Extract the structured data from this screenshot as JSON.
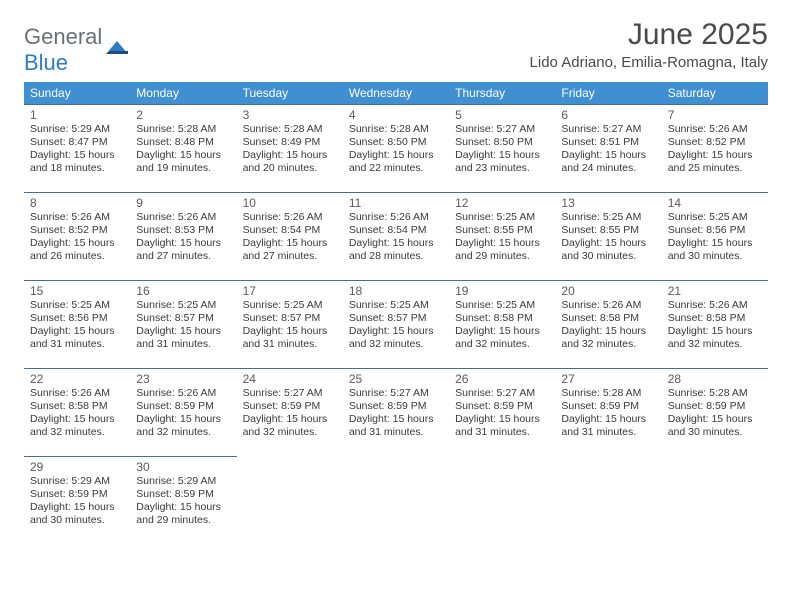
{
  "logo": {
    "part1": "General",
    "part2": "Blue"
  },
  "title": "June 2025",
  "location": "Lido Adriano, Emilia-Romagna, Italy",
  "colors": {
    "header_bg": "#3f8fd1",
    "header_text": "#ffffff",
    "cell_border": "#3f6f9c",
    "body_text": "#3a3a3a",
    "logo_gray": "#6b7076",
    "logo_blue": "#2e7cc2",
    "background": "#ffffff"
  },
  "weekdays": [
    "Sunday",
    "Monday",
    "Tuesday",
    "Wednesday",
    "Thursday",
    "Friday",
    "Saturday"
  ],
  "weeks": [
    [
      {
        "n": "1",
        "sr": "5:29 AM",
        "ss": "8:47 PM",
        "dl": "15 hours and 18 minutes."
      },
      {
        "n": "2",
        "sr": "5:28 AM",
        "ss": "8:48 PM",
        "dl": "15 hours and 19 minutes."
      },
      {
        "n": "3",
        "sr": "5:28 AM",
        "ss": "8:49 PM",
        "dl": "15 hours and 20 minutes."
      },
      {
        "n": "4",
        "sr": "5:28 AM",
        "ss": "8:50 PM",
        "dl": "15 hours and 22 minutes."
      },
      {
        "n": "5",
        "sr": "5:27 AM",
        "ss": "8:50 PM",
        "dl": "15 hours and 23 minutes."
      },
      {
        "n": "6",
        "sr": "5:27 AM",
        "ss": "8:51 PM",
        "dl": "15 hours and 24 minutes."
      },
      {
        "n": "7",
        "sr": "5:26 AM",
        "ss": "8:52 PM",
        "dl": "15 hours and 25 minutes."
      }
    ],
    [
      {
        "n": "8",
        "sr": "5:26 AM",
        "ss": "8:52 PM",
        "dl": "15 hours and 26 minutes."
      },
      {
        "n": "9",
        "sr": "5:26 AM",
        "ss": "8:53 PM",
        "dl": "15 hours and 27 minutes."
      },
      {
        "n": "10",
        "sr": "5:26 AM",
        "ss": "8:54 PM",
        "dl": "15 hours and 27 minutes."
      },
      {
        "n": "11",
        "sr": "5:26 AM",
        "ss": "8:54 PM",
        "dl": "15 hours and 28 minutes."
      },
      {
        "n": "12",
        "sr": "5:25 AM",
        "ss": "8:55 PM",
        "dl": "15 hours and 29 minutes."
      },
      {
        "n": "13",
        "sr": "5:25 AM",
        "ss": "8:55 PM",
        "dl": "15 hours and 30 minutes."
      },
      {
        "n": "14",
        "sr": "5:25 AM",
        "ss": "8:56 PM",
        "dl": "15 hours and 30 minutes."
      }
    ],
    [
      {
        "n": "15",
        "sr": "5:25 AM",
        "ss": "8:56 PM",
        "dl": "15 hours and 31 minutes."
      },
      {
        "n": "16",
        "sr": "5:25 AM",
        "ss": "8:57 PM",
        "dl": "15 hours and 31 minutes."
      },
      {
        "n": "17",
        "sr": "5:25 AM",
        "ss": "8:57 PM",
        "dl": "15 hours and 31 minutes."
      },
      {
        "n": "18",
        "sr": "5:25 AM",
        "ss": "8:57 PM",
        "dl": "15 hours and 32 minutes."
      },
      {
        "n": "19",
        "sr": "5:25 AM",
        "ss": "8:58 PM",
        "dl": "15 hours and 32 minutes."
      },
      {
        "n": "20",
        "sr": "5:26 AM",
        "ss": "8:58 PM",
        "dl": "15 hours and 32 minutes."
      },
      {
        "n": "21",
        "sr": "5:26 AM",
        "ss": "8:58 PM",
        "dl": "15 hours and 32 minutes."
      }
    ],
    [
      {
        "n": "22",
        "sr": "5:26 AM",
        "ss": "8:58 PM",
        "dl": "15 hours and 32 minutes."
      },
      {
        "n": "23",
        "sr": "5:26 AM",
        "ss": "8:59 PM",
        "dl": "15 hours and 32 minutes."
      },
      {
        "n": "24",
        "sr": "5:27 AM",
        "ss": "8:59 PM",
        "dl": "15 hours and 32 minutes."
      },
      {
        "n": "25",
        "sr": "5:27 AM",
        "ss": "8:59 PM",
        "dl": "15 hours and 31 minutes."
      },
      {
        "n": "26",
        "sr": "5:27 AM",
        "ss": "8:59 PM",
        "dl": "15 hours and 31 minutes."
      },
      {
        "n": "27",
        "sr": "5:28 AM",
        "ss": "8:59 PM",
        "dl": "15 hours and 31 minutes."
      },
      {
        "n": "28",
        "sr": "5:28 AM",
        "ss": "8:59 PM",
        "dl": "15 hours and 30 minutes."
      }
    ],
    [
      {
        "n": "29",
        "sr": "5:29 AM",
        "ss": "8:59 PM",
        "dl": "15 hours and 30 minutes."
      },
      {
        "n": "30",
        "sr": "5:29 AM",
        "ss": "8:59 PM",
        "dl": "15 hours and 29 minutes."
      },
      null,
      null,
      null,
      null,
      null
    ]
  ],
  "labels": {
    "sunrise": "Sunrise:",
    "sunset": "Sunset:",
    "daylight": "Daylight:"
  }
}
